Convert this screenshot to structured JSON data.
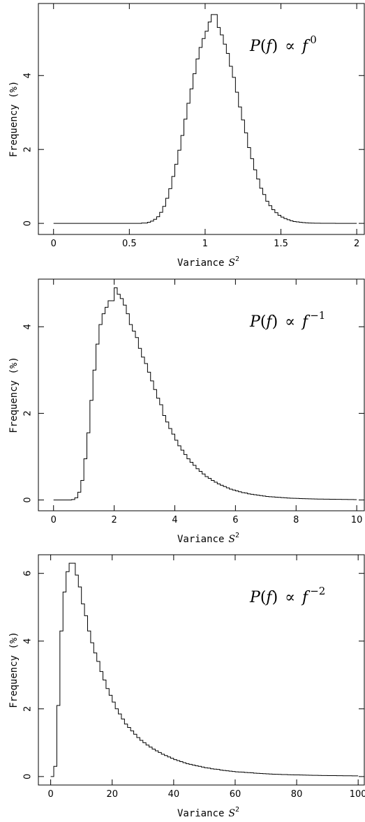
{
  "chart_data": [
    {
      "type": "histogram",
      "xlabel_text": "Variance",
      "xlabel_symbol": "S",
      "xlabel_sup": "2",
      "ylabel": "Frequency (%)",
      "xlim": [
        -0.1,
        2.05
      ],
      "ylim": [
        -0.3,
        5.95
      ],
      "x_ticks": [
        0,
        0.5,
        1,
        1.5,
        2
      ],
      "x_tick_labels": [
        "0",
        "0.5",
        "1",
        "1.5",
        "2"
      ],
      "y_ticks": [
        0,
        2,
        4
      ],
      "y_tick_labels": [
        "0",
        "2",
        "4"
      ],
      "annotation": {
        "lhs": "P",
        "arg": "f",
        "prop": "∝",
        "base": "f",
        "exponent": "0"
      },
      "x_start": 0.0,
      "bin_width": 0.02,
      "values": [
        0,
        0,
        0,
        0,
        0,
        0,
        0,
        0,
        0,
        0,
        0,
        0,
        0,
        0,
        0,
        0,
        0,
        0,
        0,
        0,
        0,
        0,
        0,
        0,
        0,
        0,
        0,
        0,
        0,
        0.01,
        0.01,
        0.03,
        0.06,
        0.11,
        0.18,
        0.3,
        0.46,
        0.68,
        0.94,
        1.27,
        1.6,
        1.98,
        2.38,
        2.82,
        3.25,
        3.64,
        4.05,
        4.45,
        4.76,
        5.0,
        5.2,
        5.45,
        5.65,
        5.65,
        5.3,
        5.1,
        4.85,
        4.6,
        4.25,
        3.95,
        3.55,
        3.15,
        2.8,
        2.45,
        2.05,
        1.75,
        1.45,
        1.2,
        0.95,
        0.78,
        0.6,
        0.48,
        0.37,
        0.29,
        0.22,
        0.17,
        0.13,
        0.1,
        0.07,
        0.05,
        0.04,
        0.03,
        0.02,
        0.015,
        0.01,
        0.008,
        0.005,
        0.004,
        0.003,
        0.002,
        0.002,
        0.001,
        0.001,
        0,
        0,
        0,
        0,
        0,
        0,
        0
      ]
    },
    {
      "type": "histogram",
      "xlabel_text": "Variance",
      "xlabel_symbol": "S",
      "xlabel_sup": "2",
      "ylabel": "Frequency (%)",
      "xlim": [
        -0.5,
        10.25
      ],
      "ylim": [
        -0.25,
        5.1
      ],
      "x_ticks": [
        0,
        2,
        4,
        6,
        8,
        10
      ],
      "x_tick_labels": [
        "0",
        "2",
        "4",
        "6",
        "8",
        "10"
      ],
      "y_ticks": [
        0,
        2,
        4
      ],
      "y_tick_labels": [
        "0",
        "2",
        "4"
      ],
      "annotation": {
        "lhs": "P",
        "arg": "f",
        "prop": "∝",
        "base": "f",
        "exponent": "−1"
      },
      "x_start": 0.0,
      "bin_width": 0.1,
      "values": [
        0,
        0,
        0,
        0,
        0,
        0,
        0.01,
        0.05,
        0.18,
        0.45,
        0.95,
        1.55,
        2.3,
        3.0,
        3.6,
        4.05,
        4.3,
        4.45,
        4.6,
        4.6,
        4.9,
        4.75,
        4.65,
        4.5,
        4.3,
        4.05,
        3.9,
        3.75,
        3.5,
        3.3,
        3.15,
        2.95,
        2.75,
        2.55,
        2.35,
        2.2,
        1.95,
        1.8,
        1.65,
        1.52,
        1.38,
        1.25,
        1.15,
        1.05,
        0.95,
        0.87,
        0.8,
        0.72,
        0.66,
        0.6,
        0.54,
        0.5,
        0.45,
        0.41,
        0.37,
        0.34,
        0.31,
        0.28,
        0.25,
        0.23,
        0.21,
        0.19,
        0.17,
        0.16,
        0.14,
        0.13,
        0.12,
        0.11,
        0.1,
        0.09,
        0.08,
        0.075,
        0.07,
        0.065,
        0.06,
        0.055,
        0.05,
        0.045,
        0.04,
        0.038,
        0.035,
        0.032,
        0.03,
        0.028,
        0.026,
        0.024,
        0.022,
        0.02,
        0.019,
        0.018,
        0.017,
        0.016,
        0.015,
        0.014,
        0.013,
        0.012,
        0.011,
        0.01,
        0.009,
        0.008
      ]
    },
    {
      "type": "histogram",
      "xlabel_text": "Variance",
      "xlabel_symbol": "S",
      "xlabel_sup": "2",
      "ylabel": "Frequency (%)",
      "xlim": [
        -4,
        102
      ],
      "ylim": [
        -0.25,
        6.55
      ],
      "x_ticks": [
        0,
        20,
        40,
        60,
        80,
        100
      ],
      "x_tick_labels": [
        "0",
        "20",
        "40",
        "60",
        "80",
        "100"
      ],
      "y_ticks": [
        0,
        2,
        4,
        6
      ],
      "y_tick_labels": [
        "0",
        "2",
        "4",
        "6"
      ],
      "annotation": {
        "lhs": "P",
        "arg": "f",
        "prop": "∝",
        "base": "f",
        "exponent": "−2"
      },
      "x_start": 0.0,
      "bin_width": 1.0,
      "values": [
        0,
        0.3,
        2.1,
        4.3,
        5.45,
        6.05,
        6.3,
        6.3,
        5.95,
        5.6,
        5.1,
        4.75,
        4.3,
        3.95,
        3.65,
        3.4,
        3.1,
        2.85,
        2.6,
        2.4,
        2.2,
        2.0,
        1.85,
        1.7,
        1.55,
        1.45,
        1.35,
        1.25,
        1.15,
        1.07,
        1.0,
        0.93,
        0.87,
        0.81,
        0.76,
        0.71,
        0.66,
        0.62,
        0.58,
        0.54,
        0.5,
        0.47,
        0.44,
        0.41,
        0.38,
        0.36,
        0.34,
        0.32,
        0.3,
        0.28,
        0.26,
        0.25,
        0.23,
        0.22,
        0.21,
        0.19,
        0.18,
        0.17,
        0.16,
        0.15,
        0.14,
        0.135,
        0.13,
        0.12,
        0.115,
        0.11,
        0.1,
        0.095,
        0.09,
        0.085,
        0.08,
        0.075,
        0.07,
        0.068,
        0.065,
        0.06,
        0.058,
        0.055,
        0.052,
        0.05,
        0.048,
        0.045,
        0.043,
        0.041,
        0.039,
        0.037,
        0.035,
        0.033,
        0.031,
        0.03,
        0.029,
        0.028,
        0.027,
        0.026,
        0.025,
        0.024,
        0.023,
        0.022,
        0.021,
        0.02
      ]
    }
  ]
}
